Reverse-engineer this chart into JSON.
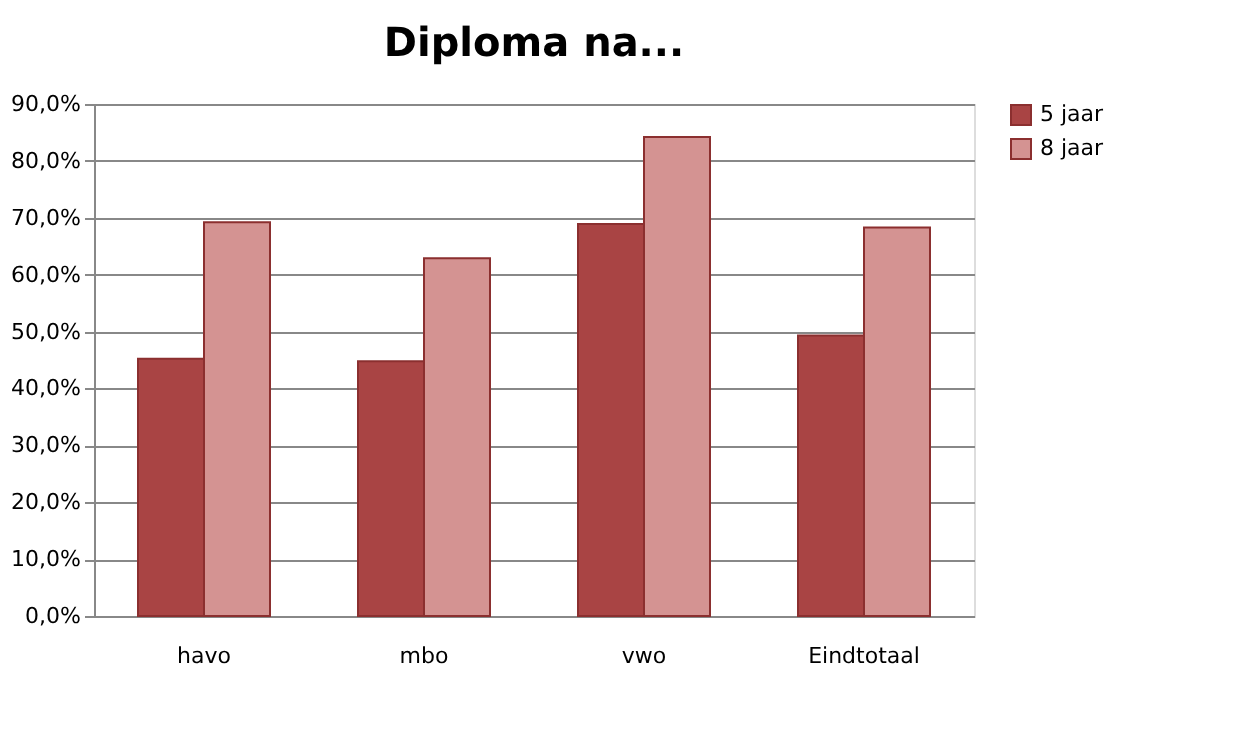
{
  "chart_data": {
    "type": "bar",
    "title": "Diploma na...",
    "categories": [
      "havo",
      "mbo",
      "vwo",
      "Eindtotaal"
    ],
    "series": [
      {
        "name": "5 jaar",
        "color": "#a94444",
        "values": [
          45.2,
          44.8,
          68.9,
          49.3
        ]
      },
      {
        "name": "8 jaar",
        "color": "#d49392",
        "values": [
          69.2,
          62.9,
          84.2,
          68.3
        ]
      }
    ],
    "ylim": [
      0,
      90
    ],
    "yticks": [
      {
        "value": 0,
        "label": "0,0%"
      },
      {
        "value": 10,
        "label": "10,0%"
      },
      {
        "value": 20,
        "label": "20,0%"
      },
      {
        "value": 30,
        "label": "30,0%"
      },
      {
        "value": 40,
        "label": "40,0%"
      },
      {
        "value": 50,
        "label": "50,0%"
      },
      {
        "value": 60,
        "label": "60,0%"
      },
      {
        "value": 70,
        "label": "70,0%"
      },
      {
        "value": 80,
        "label": "80,0%"
      },
      {
        "value": 90,
        "label": "90,0%"
      }
    ],
    "grid": "y",
    "legend": "right"
  }
}
